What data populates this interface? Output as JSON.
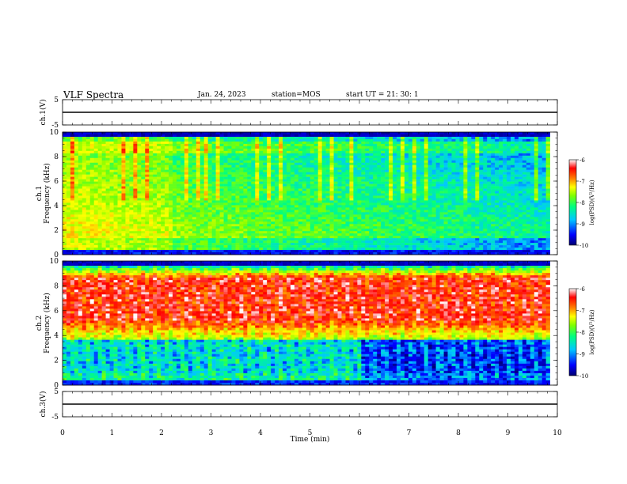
{
  "header": {
    "title": "VLF Spectra",
    "date": "Jan. 24, 2023",
    "station": "station=MOS",
    "start_ut": "start UT =  21: 30: 1"
  },
  "chart_data": [
    {
      "type": "line",
      "panel": "ch1-waveform",
      "ylabel": "ch.1(V)",
      "ylim": [
        -5,
        5
      ],
      "yticks": [
        "5",
        "-5"
      ],
      "xlim": [
        0,
        10
      ],
      "series": [
        {
          "x": [
            0,
            10
          ],
          "y": [
            0,
            0
          ]
        }
      ]
    },
    {
      "type": "heatmap",
      "panel": "ch1-spectrogram",
      "ylabel": "ch.1\nFrequency (kHz)",
      "ylim": [
        0,
        10
      ],
      "yticks": [
        "0",
        "2",
        "4",
        "6",
        "8",
        "10"
      ],
      "xlim": [
        0,
        10
      ],
      "data_extent_min": 9.85,
      "colorbar": {
        "label": "log(PSD)(V²/Hz)",
        "min": -10,
        "max": -6,
        "ticks": [
          "-6",
          "-7",
          "-8",
          "-9",
          "-10"
        ]
      }
    },
    {
      "type": "heatmap",
      "panel": "ch2-spectrogram",
      "ylabel": "ch.2\nFrequency (kHz)",
      "ylim": [
        0,
        10
      ],
      "yticks": [
        "0",
        "2",
        "4",
        "6",
        "8",
        "10"
      ],
      "xlim": [
        0,
        10
      ],
      "data_extent_min": 9.85,
      "colorbar": {
        "label": "log(PSD)(V²/Hz)",
        "min": -10,
        "max": -6,
        "ticks": [
          "-6",
          "-7",
          "-8",
          "-9",
          "-10"
        ]
      }
    },
    {
      "type": "line",
      "panel": "ch3-waveform",
      "ylabel": "ch.3(V)",
      "ylim": [
        -5,
        5
      ],
      "yticks": [
        "5",
        "-5"
      ],
      "xlim": [
        0,
        10
      ],
      "xlabel": "Time (min)",
      "xticks": [
        "0",
        "1",
        "2",
        "3",
        "4",
        "5",
        "6",
        "7",
        "8",
        "9",
        "10"
      ],
      "series": [
        {
          "x": [
            0,
            10
          ],
          "y": [
            0,
            0
          ]
        }
      ]
    }
  ],
  "colors": {
    "colormap": [
      "#000070",
      "#0000ff",
      "#00c8ff",
      "#00ff80",
      "#80ff00",
      "#ffff00",
      "#ff8000",
      "#ff0000",
      "#ffffff"
    ]
  }
}
